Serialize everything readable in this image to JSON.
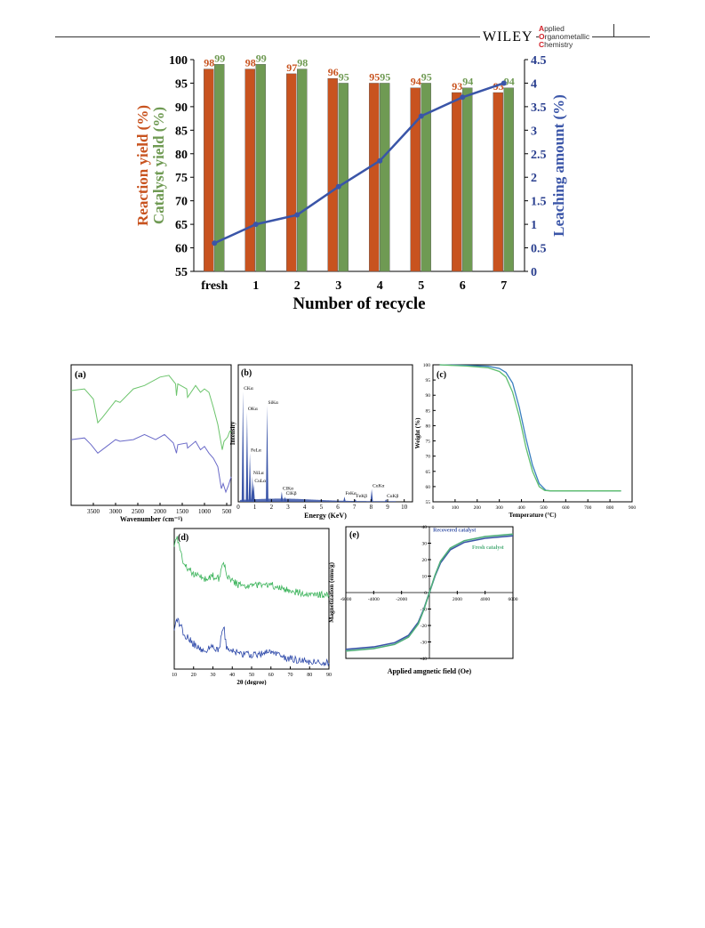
{
  "header": {
    "publisher": "WILEY",
    "journal_lines": [
      {
        "cap": "A",
        "rest": "pplied"
      },
      {
        "cap": "O",
        "rest": "rganometallic"
      },
      {
        "cap": "C",
        "rest": "hemistry"
      }
    ]
  },
  "chart_data": [
    {
      "type": "bar",
      "id": "recycle",
      "categories": [
        "fresh",
        "1",
        "2",
        "3",
        "4",
        "5",
        "6",
        "7"
      ],
      "series": [
        {
          "name": "Reaction yield (%)",
          "values": [
            98,
            98,
            97,
            96,
            95,
            94,
            93,
            93
          ],
          "color": "#c8531f"
        },
        {
          "name": "Catalyst yield (%)",
          "values": [
            99,
            99,
            98,
            95,
            95,
            95,
            94,
            94
          ],
          "color": "#6f9a53"
        }
      ],
      "line_series": {
        "name": "Leaching amount (%)",
        "values": [
          0.6,
          1.0,
          1.2,
          1.8,
          2.35,
          3.3,
          3.7,
          4.0
        ],
        "color": "#3a55a8"
      },
      "xlabel": "Number of recycle",
      "ylabel_left_1": "Reaction yield (%)",
      "ylabel_left_2": "Catalyst yield (%)",
      "ylabel_right": "Leaching amount (%)",
      "ylim": [
        55,
        100
      ],
      "y2lim": [
        0,
        4.5
      ],
      "yticks": [
        "55",
        "60",
        "65",
        "70",
        "75",
        "80",
        "85",
        "90",
        "95",
        "100"
      ],
      "y2ticks": [
        "0",
        "0.5",
        "1",
        "1.5",
        "2",
        "2.5",
        "3",
        "3.5",
        "4",
        "4.5"
      ]
    },
    {
      "type": "line",
      "id": "ftir",
      "panel_label": "(a)",
      "xlabel": "Wavenumber (cm⁻¹)",
      "xticks": [
        "3500",
        "3000",
        "2500",
        "2000",
        "1500",
        "1000",
        "500"
      ],
      "xlim": [
        4000,
        400
      ],
      "series": [
        {
          "color": "#6cc46c",
          "points": [
            [
              4000,
              0.8
            ],
            [
              3700,
              0.82
            ],
            [
              3500,
              0.7
            ],
            [
              3400,
              0.42
            ],
            [
              3300,
              0.48
            ],
            [
              3000,
              0.68
            ],
            [
              2900,
              0.66
            ],
            [
              2600,
              0.82
            ],
            [
              2350,
              0.86
            ],
            [
              2000,
              0.96
            ],
            [
              1800,
              0.98
            ],
            [
              1650,
              0.88
            ],
            [
              1630,
              0.74
            ],
            [
              1600,
              0.88
            ],
            [
              1400,
              0.82
            ],
            [
              1380,
              0.72
            ],
            [
              1200,
              0.86
            ],
            [
              1090,
              0.78
            ],
            [
              1000,
              0.82
            ],
            [
              900,
              0.78
            ],
            [
              800,
              0.6
            ],
            [
              700,
              0.4
            ],
            [
              600,
              0.1
            ],
            [
              560,
              0.2
            ],
            [
              480,
              0.25
            ],
            [
              430,
              0.32
            ],
            [
              400,
              0.3
            ]
          ]
        },
        {
          "color": "#6a6ac8",
          "points": [
            [
              4000,
              0.22
            ],
            [
              3700,
              0.24
            ],
            [
              3550,
              0.16
            ],
            [
              3400,
              0.06
            ],
            [
              3200,
              0.14
            ],
            [
              3000,
              0.22
            ],
            [
              2900,
              0.2
            ],
            [
              2600,
              0.22
            ],
            [
              2350,
              0.28
            ],
            [
              2100,
              0.22
            ],
            [
              1900,
              0.28
            ],
            [
              1700,
              0.18
            ],
            [
              1630,
              0.06
            ],
            [
              1600,
              0.16
            ],
            [
              1400,
              0.18
            ],
            [
              1380,
              0.12
            ],
            [
              1200,
              0.2
            ],
            [
              1090,
              0.1
            ],
            [
              1000,
              0.14
            ],
            [
              900,
              0.06
            ],
            [
              800,
              0.0
            ],
            [
              700,
              -0.1
            ],
            [
              620,
              -0.36
            ],
            [
              580,
              -0.3
            ],
            [
              520,
              -0.4
            ],
            [
              460,
              -0.32
            ],
            [
              400,
              -0.22
            ]
          ]
        }
      ]
    },
    {
      "type": "bar",
      "id": "edx",
      "panel_label": "(b)",
      "xlabel": "Energy (KeV)",
      "ylabel": "Intensity",
      "xticks": [
        "0",
        "1",
        "2",
        "3",
        "4",
        "5",
        "6",
        "7",
        "8",
        "9",
        "10"
      ],
      "xlim": [
        0,
        10.5
      ],
      "peaks": [
        {
          "label": "CKα",
          "x": 0.28,
          "h": 0.86
        },
        {
          "label": "OKα",
          "x": 0.53,
          "h": 0.7
        },
        {
          "label": "FeLα",
          "x": 0.7,
          "h": 0.38
        },
        {
          "label": "NiLα",
          "x": 0.85,
          "h": 0.2
        },
        {
          "label": "CuLα",
          "x": 0.93,
          "h": 0.14
        },
        {
          "label": "SiKα",
          "x": 1.74,
          "h": 0.75
        },
        {
          "label": "ClKα",
          "x": 2.62,
          "h": 0.08
        },
        {
          "label": "ClKβ",
          "x": 2.82,
          "h": 0.04
        },
        {
          "label": "FeKα",
          "x": 6.4,
          "h": 0.04
        },
        {
          "label": "FeKβ",
          "x": 7.06,
          "h": 0.02
        },
        {
          "label": "CuKα",
          "x": 8.04,
          "h": 0.1
        },
        {
          "label": "CuKβ",
          "x": 8.9,
          "h": 0.02
        }
      ]
    },
    {
      "type": "line",
      "id": "tga",
      "panel_label": "(c)",
      "xlabel": "Temperature (°C)",
      "ylabel": "Weight (%)",
      "xticks": [
        "0",
        "100",
        "200",
        "300",
        "400",
        "500",
        "600",
        "700",
        "800",
        "900"
      ],
      "yticks": [
        "55",
        "60",
        "65",
        "70",
        "75",
        "80",
        "85",
        "90",
        "95",
        "100"
      ],
      "xlim": [
        0,
        900
      ],
      "ylim": [
        55,
        100
      ],
      "series": [
        {
          "color": "#3a7fbf",
          "points": [
            [
              30,
              100
            ],
            [
              150,
              99.8
            ],
            [
              250,
              99.5
            ],
            [
              300,
              98.8
            ],
            [
              330,
              97.5
            ],
            [
              360,
              94
            ],
            [
              390,
              86
            ],
            [
              420,
              76
            ],
            [
              450,
              67
            ],
            [
              480,
              61
            ],
            [
              510,
              58.8
            ],
            [
              530,
              58.6
            ],
            [
              850,
              58.6
            ]
          ]
        },
        {
          "color": "#5fbf6f",
          "points": [
            [
              30,
              100
            ],
            [
              150,
              99.6
            ],
            [
              250,
              99
            ],
            [
              300,
              97.8
            ],
            [
              330,
              96
            ],
            [
              360,
              91
            ],
            [
              390,
              83
            ],
            [
              420,
              73
            ],
            [
              450,
              65
            ],
            [
              480,
              60
            ],
            [
              505,
              58.7
            ],
            [
              530,
              58.6
            ],
            [
              850,
              58.6
            ]
          ]
        }
      ]
    },
    {
      "type": "line",
      "id": "xrd",
      "panel_label": "(d)",
      "xlabel": "2θ (degree)",
      "xticks": [
        "10",
        "20",
        "30",
        "40",
        "50",
        "60",
        "70",
        "80",
        "90"
      ],
      "xlim": [
        10,
        90
      ],
      "series": [
        {
          "color": "#3bb35a",
          "points": [
            [
              10,
              0.95
            ],
            [
              11.5,
              1.0
            ],
            [
              13,
              0.9
            ],
            [
              15,
              0.78
            ],
            [
              18,
              0.74
            ],
            [
              22,
              0.7
            ],
            [
              26,
              0.68
            ],
            [
              30,
              0.7
            ],
            [
              33,
              0.68
            ],
            [
              35.5,
              0.82
            ],
            [
              37,
              0.7
            ],
            [
              43,
              0.63
            ],
            [
              50,
              0.62
            ],
            [
              57,
              0.63
            ],
            [
              63,
              0.62
            ],
            [
              70,
              0.58
            ],
            [
              80,
              0.56
            ],
            [
              90,
              0.55
            ]
          ]
        },
        {
          "color": "#2a46a8",
          "points": [
            [
              10,
              0.28
            ],
            [
              11.5,
              0.35
            ],
            [
              13,
              0.32
            ],
            [
              15,
              0.25
            ],
            [
              18,
              0.2
            ],
            [
              22,
              0.14
            ],
            [
              26,
              0.12
            ],
            [
              30,
              0.14
            ],
            [
              33,
              0.12
            ],
            [
              35.5,
              0.32
            ],
            [
              37,
              0.14
            ],
            [
              43,
              0.1
            ],
            [
              50,
              0.08
            ],
            [
              57,
              0.1
            ],
            [
              63,
              0.09
            ],
            [
              70,
              0.05
            ],
            [
              80,
              0.03
            ],
            [
              90,
              0.02
            ]
          ]
        }
      ]
    },
    {
      "type": "line",
      "id": "vsm",
      "panel_label": "(e)",
      "xlabel": "Applied amgnetic field (Oe)",
      "ylabel": "Magnetization (emu/g)",
      "xticks": [
        "-6000",
        "-4000",
        "-2000",
        "0",
        "2000",
        "4000",
        "6000"
      ],
      "yticks": [
        "-40",
        "-30",
        "-20",
        "-10",
        "0",
        "10",
        "20",
        "30",
        "40"
      ],
      "xlim": [
        -6000,
        6000
      ],
      "ylim": [
        -40,
        40
      ],
      "series": [
        {
          "name": "Recovered catalyst",
          "color": "#3a55a8",
          "points": [
            [
              -6000,
              -34.5
            ],
            [
              -4000,
              -33
            ],
            [
              -2500,
              -30.5
            ],
            [
              -1500,
              -26
            ],
            [
              -800,
              -18
            ],
            [
              -400,
              -10
            ],
            [
              0,
              0
            ],
            [
              400,
              10
            ],
            [
              800,
              18
            ],
            [
              1500,
              26
            ],
            [
              2500,
              30.5
            ],
            [
              4000,
              33
            ],
            [
              6000,
              34.5
            ]
          ]
        },
        {
          "name": "Fresh catalyst",
          "color": "#4fae7a",
          "points": [
            [
              -6000,
              -35.5
            ],
            [
              -4000,
              -34
            ],
            [
              -2500,
              -31.5
            ],
            [
              -1500,
              -27
            ],
            [
              -800,
              -19
            ],
            [
              -400,
              -10.5
            ],
            [
              0,
              0
            ],
            [
              400,
              10.5
            ],
            [
              800,
              19
            ],
            [
              1500,
              27
            ],
            [
              2500,
              31.5
            ],
            [
              4000,
              34
            ],
            [
              6000,
              35.5
            ]
          ]
        }
      ]
    }
  ]
}
